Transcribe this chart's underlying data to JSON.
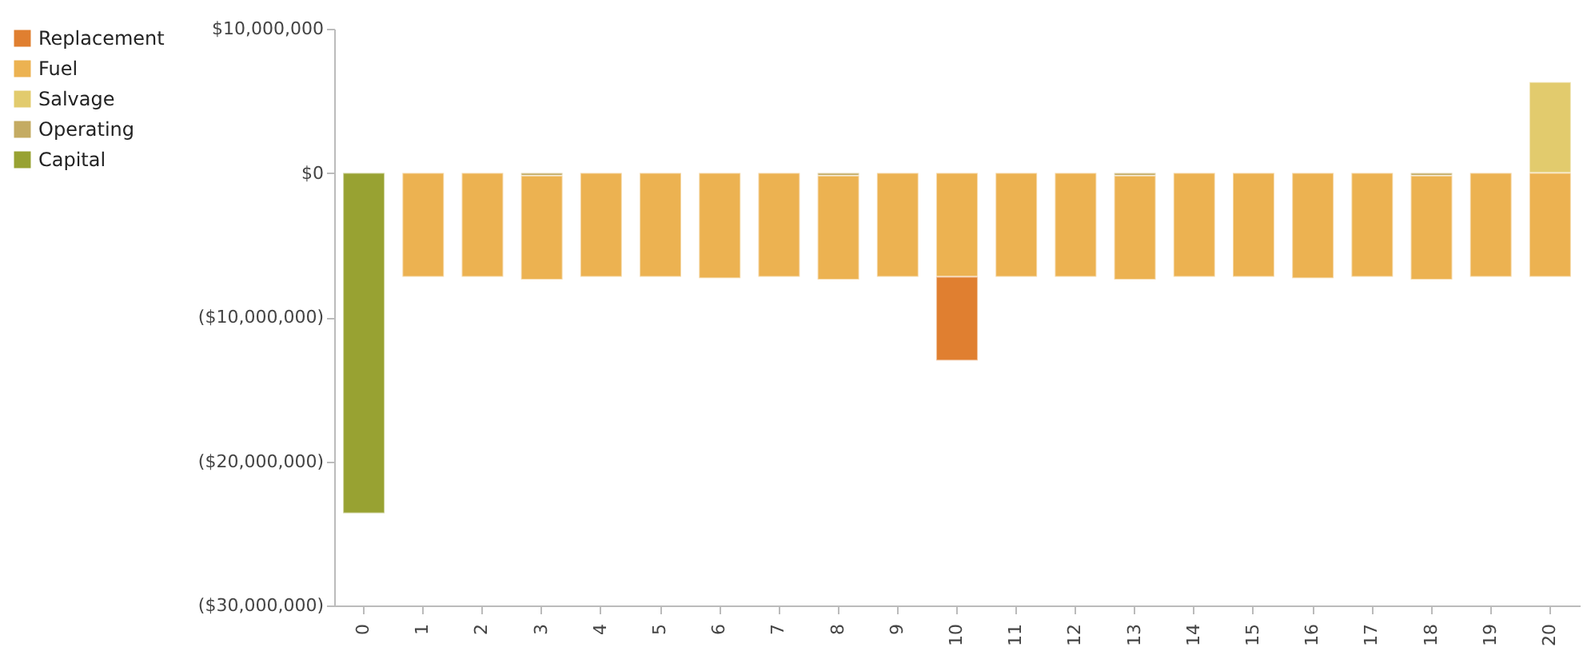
{
  "chart_data": {
    "type": "bar",
    "stacked": true,
    "legend": "top left",
    "grid": false,
    "categories": [
      "0",
      "1",
      "2",
      "3",
      "4",
      "5",
      "6",
      "7",
      "8",
      "9",
      "10",
      "11",
      "12",
      "13",
      "14",
      "15",
      "16",
      "17",
      "18",
      "19",
      "20"
    ],
    "ylim": [
      -30000000,
      10000000
    ],
    "yticks": [
      {
        "value": -30000000,
        "label": "($30,000,000)"
      },
      {
        "value": -20000000,
        "label": "($20,000,000)"
      },
      {
        "value": -10000000,
        "label": "($10,000,000)"
      },
      {
        "value": 0,
        "label": "$0"
      },
      {
        "value": 10000000,
        "label": "$10,000,000"
      }
    ],
    "series": [
      {
        "name": "Capital",
        "color": "#98a232",
        "values": [
          -23600000,
          null,
          null,
          null,
          null,
          null,
          null,
          null,
          null,
          null,
          null,
          null,
          null,
          null,
          null,
          null,
          null,
          null,
          null,
          null,
          null
        ]
      },
      {
        "name": "Operating",
        "color": "#c4ab62",
        "values": [
          null,
          null,
          null,
          -200000,
          null,
          null,
          null,
          null,
          -200000,
          null,
          null,
          null,
          null,
          -200000,
          null,
          null,
          null,
          null,
          -200000,
          null,
          null
        ]
      },
      {
        "name": "Salvage",
        "color": "#e2cb6d",
        "values": [
          null,
          null,
          null,
          null,
          null,
          null,
          null,
          null,
          null,
          null,
          null,
          null,
          null,
          null,
          null,
          null,
          null,
          null,
          null,
          null,
          6300000
        ]
      },
      {
        "name": "Fuel",
        "color": "#ecb251",
        "values": [
          null,
          -7200000,
          -7200000,
          -7200000,
          -7200000,
          -7200000,
          -7300000,
          -7200000,
          -7200000,
          -7200000,
          -7200000,
          -7200000,
          -7200000,
          -7200000,
          -7200000,
          -7200000,
          -7300000,
          -7200000,
          -7200000,
          -7200000,
          -7200000
        ]
      },
      {
        "name": "Replacement",
        "color": "#e07f30",
        "values": [
          null,
          null,
          null,
          null,
          null,
          null,
          null,
          null,
          null,
          null,
          -5800000,
          null,
          null,
          null,
          null,
          null,
          null,
          null,
          null,
          null,
          null
        ]
      }
    ]
  }
}
